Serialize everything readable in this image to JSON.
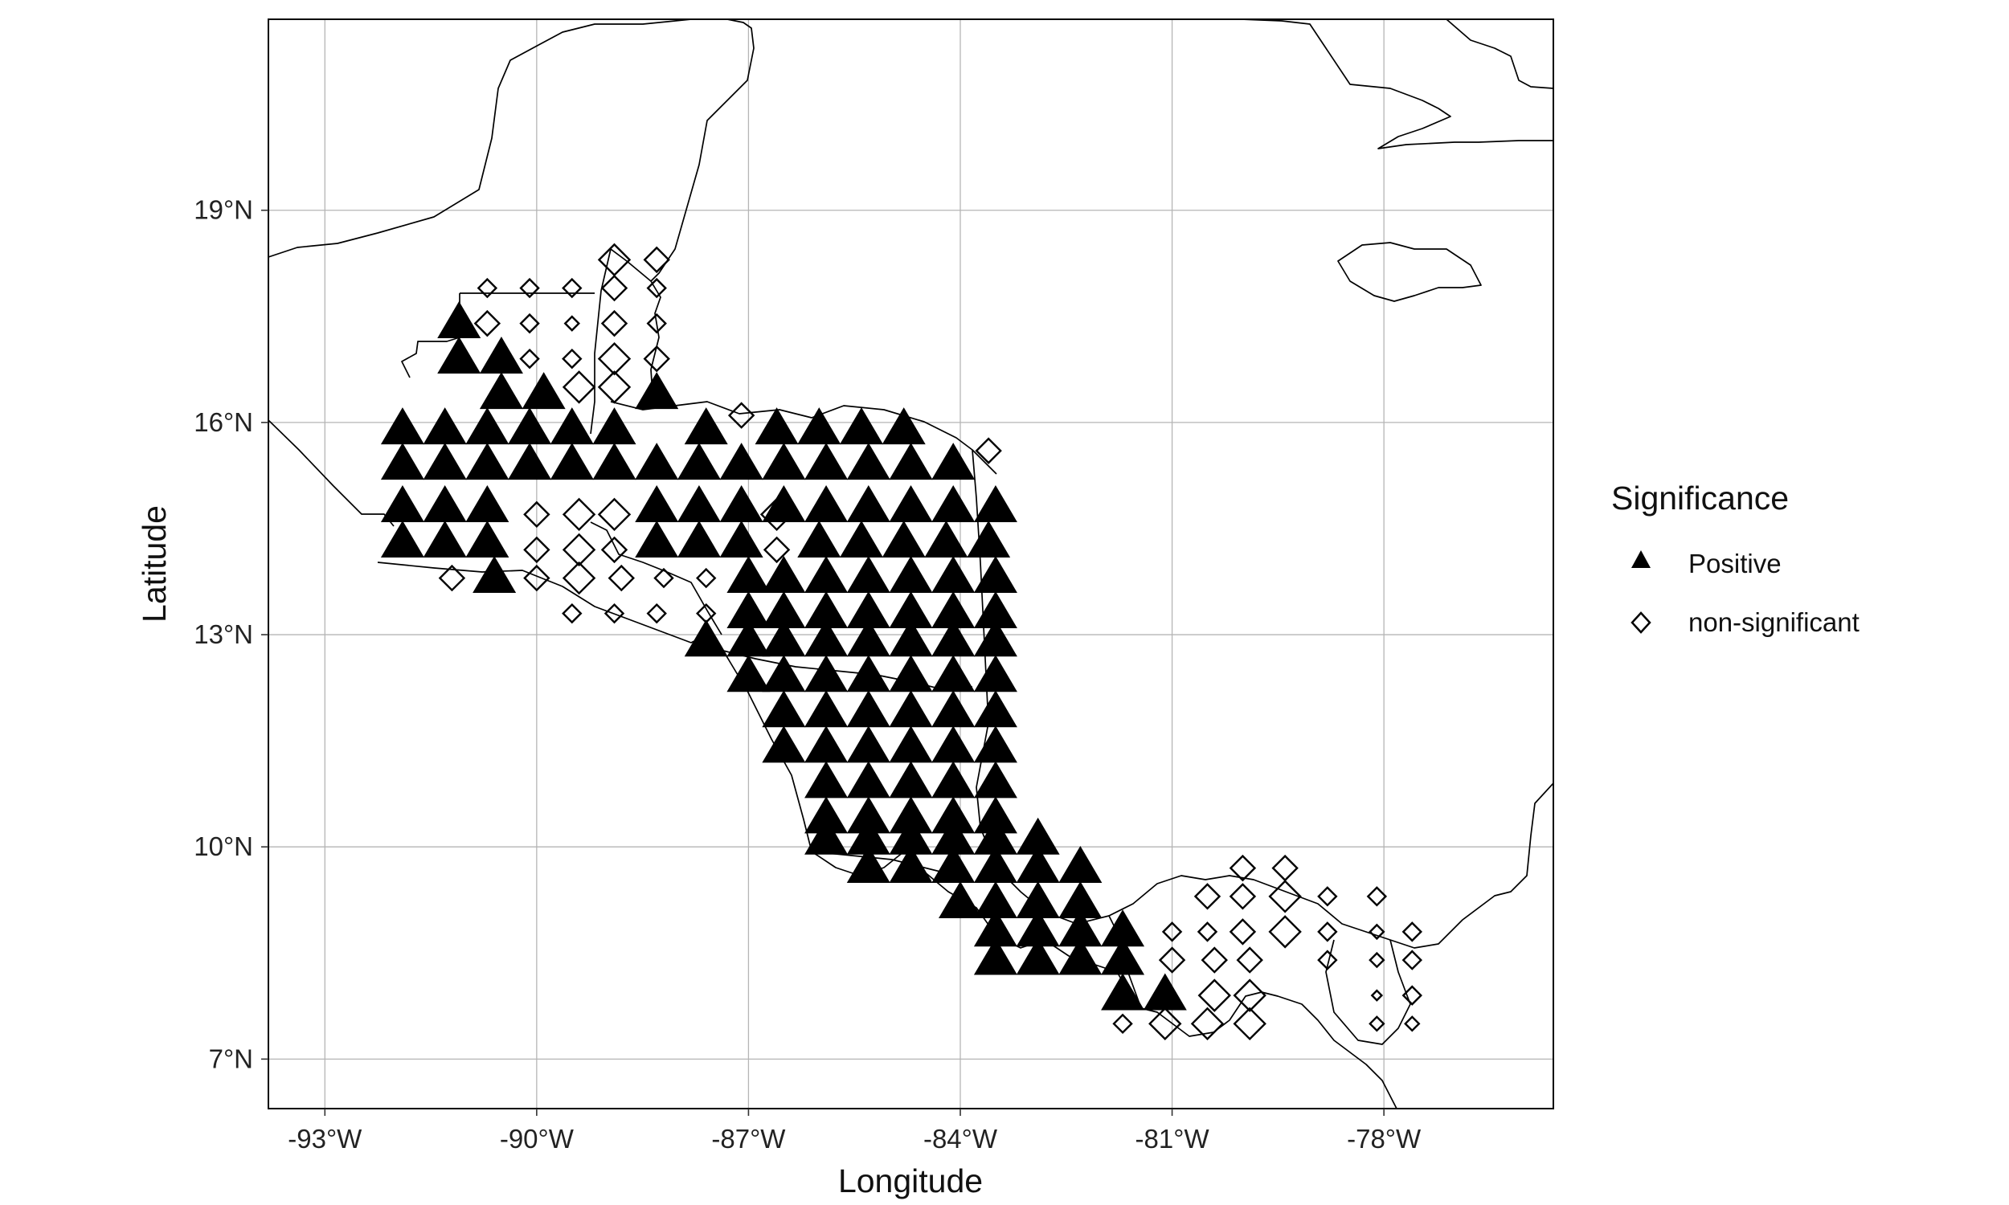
{
  "chart_data": {
    "type": "scatter",
    "xlabel": "Longitude",
    "ylabel": "Latitude",
    "xlim": [
      -93.8,
      -75.6
    ],
    "ylim": [
      6.3,
      21.7
    ],
    "x_ticks": [
      -93,
      -90,
      -87,
      -84,
      -81,
      -78
    ],
    "x_tick_labels": [
      "-93°W",
      "-90°W",
      "-87°W",
      "-84°W",
      "-81°W",
      "-78°W"
    ],
    "y_ticks": [
      7,
      10,
      13,
      16,
      19
    ],
    "y_tick_labels": [
      "7°N",
      "10°N",
      "13°N",
      "16°N",
      "19°N"
    ],
    "grid": true,
    "legend": {
      "title": "Significance",
      "placement": "right",
      "entries": [
        {
          "label": "Positive",
          "shape": "triangle-filled",
          "color": "#000000"
        },
        {
          "label": "non-significant",
          "shape": "diamond-open",
          "color": "#000000"
        }
      ]
    },
    "series": [
      {
        "name": "Positive",
        "shape": "triangle-filled",
        "points": [
          [
            -91.1,
            17.4
          ],
          [
            -91.1,
            16.9
          ],
          [
            -90.5,
            16.9
          ],
          [
            -90.5,
            16.4
          ],
          [
            -89.9,
            16.4
          ],
          [
            -88.3,
            16.4
          ],
          [
            -91.9,
            15.9
          ],
          [
            -91.3,
            15.9
          ],
          [
            -90.7,
            15.9
          ],
          [
            -90.1,
            15.9
          ],
          [
            -89.5,
            15.9
          ],
          [
            -88.9,
            15.9
          ],
          [
            -87.6,
            15.9
          ],
          [
            -86.6,
            15.9
          ],
          [
            -86.0,
            15.9
          ],
          [
            -85.4,
            15.9
          ],
          [
            -84.8,
            15.9
          ],
          [
            -91.9,
            15.4
          ],
          [
            -91.3,
            15.4
          ],
          [
            -90.7,
            15.4
          ],
          [
            -90.1,
            15.4
          ],
          [
            -89.5,
            15.4
          ],
          [
            -88.9,
            15.4
          ],
          [
            -88.3,
            15.4
          ],
          [
            -87.7,
            15.4
          ],
          [
            -87.1,
            15.4
          ],
          [
            -86.5,
            15.4
          ],
          [
            -85.9,
            15.4
          ],
          [
            -85.3,
            15.4
          ],
          [
            -84.7,
            15.4
          ],
          [
            -84.1,
            15.4
          ],
          [
            -91.9,
            14.8
          ],
          [
            -91.3,
            14.8
          ],
          [
            -90.7,
            14.8
          ],
          [
            -88.3,
            14.8
          ],
          [
            -87.7,
            14.8
          ],
          [
            -87.1,
            14.8
          ],
          [
            -86.5,
            14.8
          ],
          [
            -85.9,
            14.8
          ],
          [
            -85.3,
            14.8
          ],
          [
            -84.7,
            14.8
          ],
          [
            -84.1,
            14.8
          ],
          [
            -83.5,
            14.8
          ],
          [
            -91.9,
            14.3
          ],
          [
            -91.3,
            14.3
          ],
          [
            -90.7,
            14.3
          ],
          [
            -88.3,
            14.3
          ],
          [
            -87.7,
            14.3
          ],
          [
            -87.1,
            14.3
          ],
          [
            -86.0,
            14.3
          ],
          [
            -85.4,
            14.3
          ],
          [
            -84.8,
            14.3
          ],
          [
            -84.2,
            14.3
          ],
          [
            -83.6,
            14.3
          ],
          [
            -90.6,
            13.8
          ],
          [
            -87.0,
            13.8
          ],
          [
            -86.5,
            13.8
          ],
          [
            -85.9,
            13.8
          ],
          [
            -85.3,
            13.8
          ],
          [
            -84.7,
            13.8
          ],
          [
            -84.1,
            13.8
          ],
          [
            -83.5,
            13.8
          ],
          [
            -87.0,
            13.3
          ],
          [
            -86.5,
            13.3
          ],
          [
            -85.9,
            13.3
          ],
          [
            -85.3,
            13.3
          ],
          [
            -84.7,
            13.3
          ],
          [
            -84.1,
            13.3
          ],
          [
            -83.5,
            13.3
          ],
          [
            -87.6,
            12.9
          ],
          [
            -87.0,
            12.9
          ],
          [
            -86.5,
            12.9
          ],
          [
            -85.9,
            12.9
          ],
          [
            -85.3,
            12.9
          ],
          [
            -84.7,
            12.9
          ],
          [
            -84.1,
            12.9
          ],
          [
            -83.5,
            12.9
          ],
          [
            -87.0,
            12.4
          ],
          [
            -86.5,
            12.4
          ],
          [
            -85.9,
            12.4
          ],
          [
            -85.3,
            12.4
          ],
          [
            -84.7,
            12.4
          ],
          [
            -84.1,
            12.4
          ],
          [
            -83.5,
            12.4
          ],
          [
            -86.5,
            11.9
          ],
          [
            -85.9,
            11.9
          ],
          [
            -85.3,
            11.9
          ],
          [
            -84.7,
            11.9
          ],
          [
            -84.1,
            11.9
          ],
          [
            -83.5,
            11.9
          ],
          [
            -86.5,
            11.4
          ],
          [
            -85.9,
            11.4
          ],
          [
            -85.3,
            11.4
          ],
          [
            -84.7,
            11.4
          ],
          [
            -84.1,
            11.4
          ],
          [
            -83.5,
            11.4
          ],
          [
            -85.9,
            10.9
          ],
          [
            -85.3,
            10.9
          ],
          [
            -84.7,
            10.9
          ],
          [
            -84.1,
            10.9
          ],
          [
            -83.5,
            10.9
          ],
          [
            -85.9,
            10.4
          ],
          [
            -85.3,
            10.4
          ],
          [
            -84.7,
            10.4
          ],
          [
            -84.1,
            10.4
          ],
          [
            -83.5,
            10.4
          ],
          [
            -85.9,
            10.1
          ],
          [
            -85.3,
            10.1
          ],
          [
            -84.7,
            10.1
          ],
          [
            -84.1,
            10.1
          ],
          [
            -83.5,
            10.1
          ],
          [
            -82.9,
            10.1
          ],
          [
            -85.3,
            9.7
          ],
          [
            -84.7,
            9.7
          ],
          [
            -84.1,
            9.7
          ],
          [
            -83.5,
            9.7
          ],
          [
            -82.9,
            9.7
          ],
          [
            -82.3,
            9.7
          ],
          [
            -84.0,
            9.2
          ],
          [
            -83.5,
            9.2
          ],
          [
            -82.9,
            9.2
          ],
          [
            -82.3,
            9.2
          ],
          [
            -83.5,
            8.8
          ],
          [
            -82.9,
            8.8
          ],
          [
            -82.3,
            8.8
          ],
          [
            -81.7,
            8.8
          ],
          [
            -83.5,
            8.4
          ],
          [
            -82.9,
            8.4
          ],
          [
            -82.3,
            8.4
          ],
          [
            -81.7,
            8.4
          ],
          [
            -81.7,
            7.9
          ],
          [
            -81.1,
            7.9
          ]
        ]
      },
      {
        "name": "non-significant",
        "shape": "diamond-open",
        "points": [
          [
            -88.9,
            18.3,
            2
          ],
          [
            -88.3,
            18.3,
            1
          ],
          [
            -90.7,
            17.9,
            0
          ],
          [
            -90.1,
            17.9,
            0
          ],
          [
            -89.5,
            17.9,
            0
          ],
          [
            -88.9,
            17.9,
            1
          ],
          [
            -88.3,
            17.9,
            0
          ],
          [
            -90.7,
            17.4,
            1
          ],
          [
            -90.1,
            17.4,
            0
          ],
          [
            -89.5,
            17.4,
            -1
          ],
          [
            -88.9,
            17.4,
            1
          ],
          [
            -88.3,
            17.4,
            0
          ],
          [
            -90.1,
            16.9,
            0
          ],
          [
            -89.5,
            16.9,
            0
          ],
          [
            -88.9,
            16.9,
            2
          ],
          [
            -88.3,
            16.9,
            1
          ],
          [
            -89.4,
            16.5,
            2
          ],
          [
            -88.9,
            16.5,
            2
          ],
          [
            -87.1,
            16.1,
            1
          ],
          [
            -83.6,
            15.6,
            1
          ],
          [
            -90.0,
            14.7,
            1
          ],
          [
            -89.4,
            14.7,
            2
          ],
          [
            -88.9,
            14.7,
            2
          ],
          [
            -86.6,
            14.7,
            2
          ],
          [
            -90.0,
            14.2,
            1
          ],
          [
            -89.4,
            14.2,
            2
          ],
          [
            -88.9,
            14.2,
            1
          ],
          [
            -86.6,
            14.2,
            1
          ],
          [
            -91.2,
            13.8,
            1
          ],
          [
            -90.0,
            13.8,
            1
          ],
          [
            -89.4,
            13.8,
            2
          ],
          [
            -88.8,
            13.8,
            1
          ],
          [
            -88.2,
            13.8,
            0
          ],
          [
            -87.6,
            13.8,
            0
          ],
          [
            -89.5,
            13.3,
            0
          ],
          [
            -88.9,
            13.3,
            0
          ],
          [
            -88.3,
            13.3,
            0
          ],
          [
            -87.6,
            13.3,
            0
          ],
          [
            -80.0,
            9.7,
            1
          ],
          [
            -79.4,
            9.7,
            1
          ],
          [
            -80.5,
            9.3,
            1
          ],
          [
            -80.0,
            9.3,
            1
          ],
          [
            -79.4,
            9.3,
            2
          ],
          [
            -78.8,
            9.3,
            0
          ],
          [
            -78.1,
            9.3,
            0
          ],
          [
            -81.0,
            8.8,
            0
          ],
          [
            -80.5,
            8.8,
            0
          ],
          [
            -80.0,
            8.8,
            1
          ],
          [
            -79.4,
            8.8,
            2
          ],
          [
            -78.8,
            8.8,
            0
          ],
          [
            -78.1,
            8.8,
            -1
          ],
          [
            -77.6,
            8.8,
            0
          ],
          [
            -81.0,
            8.4,
            1
          ],
          [
            -80.4,
            8.4,
            1
          ],
          [
            -79.9,
            8.4,
            1
          ],
          [
            -78.8,
            8.4,
            0
          ],
          [
            -78.1,
            8.4,
            -1
          ],
          [
            -77.6,
            8.4,
            0
          ],
          [
            -80.4,
            7.9,
            2
          ],
          [
            -79.9,
            7.9,
            2
          ],
          [
            -78.1,
            7.9,
            -2
          ],
          [
            -77.6,
            7.9,
            0
          ],
          [
            -81.7,
            7.5,
            0
          ],
          [
            -81.1,
            7.5,
            2
          ],
          [
            -80.5,
            7.5,
            2
          ],
          [
            -79.9,
            7.5,
            2
          ],
          [
            -78.1,
            7.5,
            -1
          ],
          [
            -77.6,
            7.5,
            -1
          ]
        ]
      }
    ]
  }
}
